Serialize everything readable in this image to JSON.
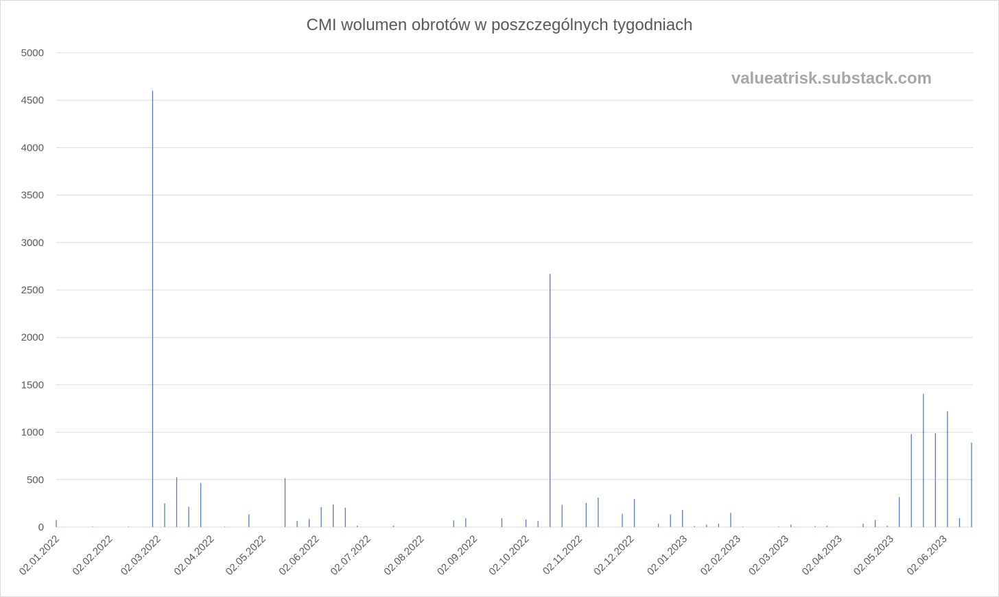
{
  "chart_data": {
    "type": "bar",
    "title": "CMI wolumen obrotów w poszczególnych tygodniach",
    "annotation": "valueatrisk.substack.com",
    "color": "#4472c4",
    "grid": true,
    "x": [
      "02.01.2022",
      "09.01.2022",
      "16.01.2022",
      "23.01.2022",
      "30.01.2022",
      "06.02.2022",
      "13.02.2022",
      "20.02.2022",
      "27.02.2022",
      "06.03.2022",
      "13.03.2022",
      "20.03.2022",
      "27.03.2022",
      "03.04.2022",
      "10.04.2022",
      "17.04.2022",
      "24.04.2022",
      "01.05.2022",
      "08.05.2022",
      "15.05.2022",
      "22.05.2022",
      "29.05.2022",
      "05.06.2022",
      "12.06.2022",
      "19.06.2022",
      "26.06.2022",
      "03.07.2022",
      "10.07.2022",
      "17.07.2022",
      "24.07.2022",
      "31.07.2022",
      "07.08.2022",
      "14.08.2022",
      "21.08.2022",
      "28.08.2022",
      "04.09.2022",
      "11.09.2022",
      "18.09.2022",
      "25.09.2022",
      "02.10.2022",
      "09.10.2022",
      "16.10.2022",
      "23.10.2022",
      "30.10.2022",
      "06.11.2022",
      "13.11.2022",
      "20.11.2022",
      "27.11.2022",
      "04.12.2022",
      "11.12.2022",
      "18.12.2022",
      "25.12.2022",
      "01.01.2023",
      "08.01.2023",
      "15.01.2023",
      "22.01.2023",
      "29.01.2023",
      "05.02.2023",
      "12.02.2023",
      "19.02.2023",
      "26.02.2023",
      "05.03.2023",
      "12.03.2023",
      "19.03.2023",
      "26.03.2023",
      "02.04.2023",
      "09.04.2023",
      "16.04.2023",
      "23.04.2023",
      "30.04.2023",
      "07.05.2023",
      "14.05.2023",
      "21.05.2023",
      "28.05.2023",
      "04.06.2023",
      "11.06.2023",
      "18.06.2023"
    ],
    "values": [
      75,
      0,
      0,
      5,
      0,
      0,
      5,
      0,
      4600,
      250,
      525,
      215,
      465,
      0,
      5,
      0,
      135,
      0,
      0,
      515,
      65,
      85,
      210,
      240,
      205,
      15,
      0,
      0,
      15,
      0,
      0,
      0,
      0,
      70,
      95,
      0,
      0,
      95,
      0,
      80,
      65,
      2670,
      235,
      0,
      255,
      310,
      0,
      140,
      295,
      0,
      35,
      135,
      180,
      10,
      25,
      35,
      150,
      5,
      0,
      0,
      5,
      25,
      0,
      10,
      15,
      0,
      0,
      35,
      75,
      15,
      315,
      980,
      1405,
      990,
      1220,
      95,
      890
    ],
    "xlim": [
      "02.01.2022",
      "18.06.2023"
    ],
    "xticks": [
      "02.01.2022",
      "02.02.2022",
      "02.03.2022",
      "02.04.2022",
      "02.05.2022",
      "02.06.2022",
      "02.07.2022",
      "02.08.2022",
      "02.09.2022",
      "02.10.2022",
      "02.11.2022",
      "02.12.2022",
      "02.01.2023",
      "02.02.2023",
      "02.03.2023",
      "02.04.2023",
      "02.05.2023",
      "02.06.2023"
    ],
    "ylim": [
      0,
      5000
    ],
    "yticks": [
      0,
      500,
      1000,
      1500,
      2000,
      2500,
      3000,
      3500,
      4000,
      4500,
      5000
    ]
  }
}
